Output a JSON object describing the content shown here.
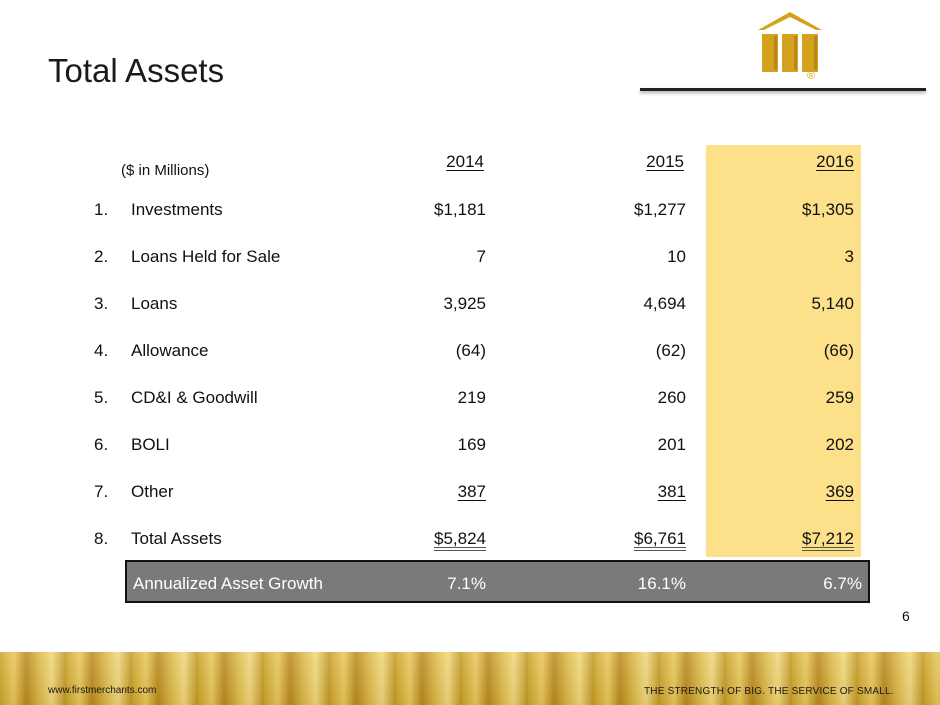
{
  "title": "Total Assets",
  "logo": {
    "mark": "®"
  },
  "units": "($ in Millions)",
  "years": [
    "2014",
    "2015",
    "2016"
  ],
  "rows": [
    {
      "num": "1.",
      "label": "Investments",
      "values": [
        "$1,181",
        "$1,277",
        "$1,305"
      ]
    },
    {
      "num": "2.",
      "label": "Loans Held for Sale",
      "values": [
        "7",
        "10",
        "3"
      ]
    },
    {
      "num": "3.",
      "label": "Loans",
      "values": [
        "3,925",
        "4,694",
        "5,140"
      ]
    },
    {
      "num": "4.",
      "label": "Allowance",
      "values": [
        "(64)",
        "(62)",
        "(66)"
      ]
    },
    {
      "num": "5.",
      "label": "CD&I & Goodwill",
      "values": [
        "219",
        "260",
        "259"
      ]
    },
    {
      "num": "6.",
      "label": "BOLI",
      "values": [
        "169",
        "201",
        "202"
      ]
    },
    {
      "num": "7.",
      "label": "Other",
      "values": [
        "387",
        "381",
        "369"
      ]
    },
    {
      "num": "8.",
      "label": "Total Assets",
      "values": [
        "$5,824",
        "$6,761",
        "$7,212"
      ]
    }
  ],
  "growth": {
    "label": "Annualized Asset Growth",
    "values": [
      "7.1%",
      "16.1%",
      "6.7%"
    ]
  },
  "page_number": "6",
  "footer": {
    "url": "www.firstmerchants.com",
    "tagline": "THE STRENGTH OF BIG. THE SERVICE OF SMALL."
  },
  "colors": {
    "highlight": "#fde08a",
    "gold": "#d4a21c",
    "growth_bg": "#7a7a7a"
  }
}
